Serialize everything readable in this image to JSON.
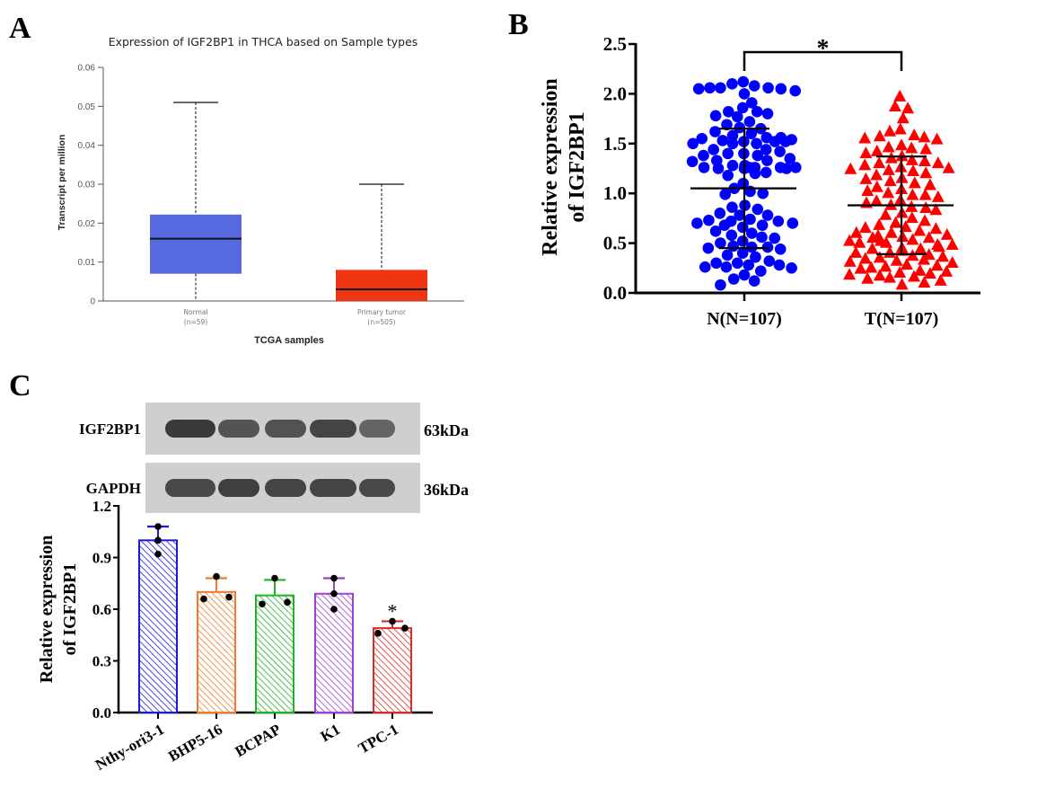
{
  "panels": {
    "A": {
      "letter": "A",
      "chart_data": {
        "type": "box",
        "title": "Expression of IGF2BP1 in THCA based on Sample types",
        "xlabel": "TCGA samples",
        "ylabel": "Transcript per million",
        "ylim": [
          0,
          0.06
        ],
        "yticks": [
          "0",
          "0.01",
          "0.02",
          "0.03",
          "0.04",
          "0.05",
          "0.06"
        ],
        "ytick_values": [
          0,
          0.01,
          0.02,
          0.03,
          0.04,
          0.05,
          0.06
        ],
        "categories": [
          {
            "name": "Normal",
            "n_label": "(n=59)",
            "min": 0,
            "q1": 0.007,
            "median": 0.016,
            "q3": 0.0222,
            "max": 0.051,
            "color": "#5669e0"
          },
          {
            "name": "Primary tumor",
            "n_label": "(n=505)",
            "min": 0,
            "q1": 0,
            "median": 0.003,
            "q3": 0.008,
            "max": 0.03,
            "color": "#ef3512"
          }
        ]
      }
    },
    "B": {
      "letter": "B",
      "chart_data": {
        "type": "scatter",
        "ylabel_line1": "Relative expression",
        "ylabel_line2": "of IGF2BP1",
        "ylim": [
          0,
          2.5
        ],
        "yticks": [
          "0.0",
          "0.5",
          "1.0",
          "1.5",
          "2.0",
          "2.5"
        ],
        "ytick_values": [
          0,
          0.5,
          1.0,
          1.5,
          2.0,
          2.5
        ],
        "significance": "*",
        "series": [
          {
            "name": "N(N=107)",
            "marker": "circle",
            "color": "#0000ff",
            "mean": 1.05,
            "sd_low": 0.45,
            "sd_high": 1.65,
            "values": [
              2.08,
              2.06,
              2.06,
              2.05,
              2.12,
              2.0,
              2.05,
              2.03,
              2.1,
              2.06,
              1.91,
              1.77,
              1.8,
              1.82,
              1.86,
              1.72,
              1.78,
              1.82,
              1.65,
              1.69,
              1.6,
              1.55,
              1.52,
              1.5,
              1.53,
              1.56,
              1.58,
              1.5,
              1.52,
              1.5,
              1.54,
              1.56,
              1.52,
              1.62,
              1.66,
              1.44,
              1.4,
              1.42,
              1.38,
              1.35,
              1.38,
              1.4,
              1.44,
              1.33,
              1.28,
              1.33,
              1.26,
              1.28,
              1.26,
              1.25,
              1.25,
              1.26,
              1.26,
              1.26,
              1.2,
              1.18,
              1.21,
              1.25,
              1.32,
              1.05,
              1.1,
              1.02,
              1.0,
              0.99,
              0.86,
              0.88,
              0.84,
              0.8,
              0.78,
              0.78,
              0.72,
              0.7,
              0.68,
              0.7,
              0.72,
              0.74,
              0.68,
              0.66,
              0.73,
              0.62,
              0.6,
              0.58,
              0.56,
              0.55,
              0.52,
              0.5,
              0.47,
              0.46,
              0.45,
              0.46,
              0.44,
              0.4,
              0.36,
              0.38,
              0.32,
              0.3,
              0.28,
              0.3,
              0.28,
              0.26,
              0.25,
              0.26,
              0.22,
              0.18,
              0.14,
              0.12,
              0.08
            ]
          },
          {
            "name": "T(N=107)",
            "marker": "triangle",
            "color": "#ff0000",
            "mean": 0.88,
            "sd_low": 0.39,
            "sd_high": 1.37,
            "values": [
              1.97,
              1.87,
              1.85,
              1.75,
              1.64,
              1.62,
              1.58,
              1.55,
              1.56,
              1.54,
              1.57,
              1.46,
              1.48,
              1.44,
              1.45,
              1.4,
              1.37,
              1.35,
              1.33,
              1.32,
              1.3,
              1.28,
              1.26,
              1.25,
              1.24,
              1.23,
              1.22,
              1.2,
              1.18,
              1.14,
              1.12,
              1.1,
              1.06,
              1.04,
              1.02,
              1.0,
              0.98,
              0.98,
              0.96,
              0.93,
              0.9,
              0.88,
              0.86,
              0.83,
              0.8,
              0.78,
              0.75,
              0.7,
              0.68,
              0.66,
              0.64,
              0.62,
              0.6,
              0.58,
              0.57,
              0.56,
              0.55,
              0.53,
              0.52,
              0.52,
              0.5,
              0.5,
              0.48,
              0.48,
              0.46,
              0.45,
              0.44,
              0.42,
              0.4,
              0.4,
              0.38,
              0.37,
              0.36,
              0.35,
              0.34,
              0.33,
              0.32,
              0.3,
              0.28,
              0.27,
              0.26,
              0.25,
              0.24,
              0.22,
              0.2,
              0.19,
              0.18,
              0.17,
              0.16,
              0.15,
              0.14,
              0.12,
              0.1,
              0.08,
              0.6,
              0.65,
              0.72,
              0.85,
              0.92,
              1.08,
              1.15,
              1.3,
              1.42,
              0.44,
              0.31,
              0.21,
              0.55
            ]
          }
        ]
      }
    },
    "C": {
      "letter": "C",
      "blot": {
        "rows": [
          {
            "label": "IGF2BP1",
            "size": "63kDa",
            "band_intensity": [
              1.0,
              0.72,
              0.75,
              0.9,
              0.55
            ]
          },
          {
            "label": "GAPDH",
            "size": "36kDa",
            "band_intensity": [
              0.85,
              0.95,
              0.9,
              0.9,
              0.85
            ]
          }
        ]
      },
      "chart_data": {
        "type": "bar",
        "ylabel_line1": "Relative expression",
        "ylabel_line2": "of IGF2BP1",
        "ylim": [
          0,
          1.2
        ],
        "yticks": [
          "0.0",
          "0.3",
          "0.6",
          "0.9",
          "1.2"
        ],
        "ytick_values": [
          0,
          0.3,
          0.6,
          0.9,
          1.2
        ],
        "categories": [
          "Nthy-ori3-1",
          "BHP5-16",
          "BCPAP",
          "K1",
          "TPC-1"
        ],
        "values": [
          1.0,
          0.7,
          0.68,
          0.69,
          0.49
        ],
        "errors": [
          0.08,
          0.08,
          0.09,
          0.09,
          0.04
        ],
        "points": [
          [
            1.08,
            1.0,
            0.92
          ],
          [
            0.79,
            0.66,
            0.67
          ],
          [
            0.78,
            0.63,
            0.64
          ],
          [
            0.78,
            0.69,
            0.6
          ],
          [
            0.53,
            0.46,
            0.49
          ]
        ],
        "colors": [
          "#1a1adb",
          "#f07a30",
          "#22b22a",
          "#a03fd8",
          "#e02a2a"
        ],
        "annotations": [
          "",
          "",
          "",
          "",
          "*"
        ]
      }
    }
  }
}
